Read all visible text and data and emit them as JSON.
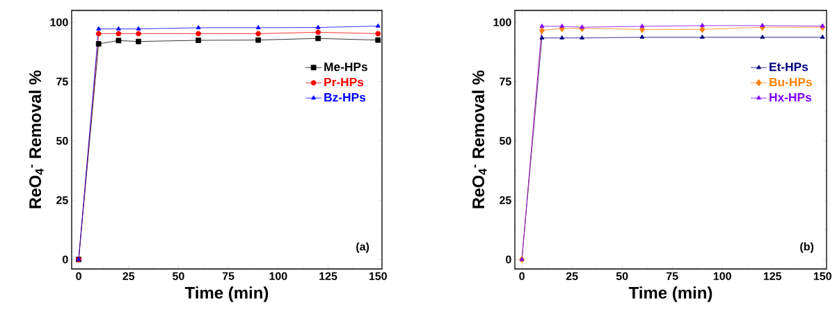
{
  "chart_data": [
    {
      "type": "line",
      "xlabel": "Time (min)",
      "ylabel": "ReO$_{4}$$^{-}$ Removal %",
      "x": [
        0,
        10,
        20,
        30,
        60,
        90,
        120,
        150
      ],
      "xlim": [
        -3.5,
        152
      ],
      "ylim": [
        -4,
        105
      ],
      "xticks": [
        0,
        25,
        50,
        75,
        100,
        125,
        150
      ],
      "yticks": [
        0,
        25,
        50,
        75,
        100
      ],
      "legend": "right",
      "annotations": [
        "(a)"
      ],
      "series": [
        {
          "name": "Me-HPs",
          "color": "#000000",
          "marker": "square",
          "values": [
            0,
            90.9,
            92.3,
            91.9,
            92.4,
            92.5,
            93.2,
            92.5
          ]
        },
        {
          "name": "Pr-HPs",
          "color": "#ff0000",
          "marker": "circle",
          "values": [
            0,
            95.2,
            95.2,
            95.2,
            95.2,
            95.2,
            95.8,
            95.2
          ]
        },
        {
          "name": "Bz-HPs",
          "color": "#0000ff",
          "marker": "triangle",
          "values": [
            0,
            97.2,
            97.2,
            97.2,
            97.7,
            97.7,
            97.8,
            98.4
          ]
        }
      ]
    },
    {
      "type": "line",
      "xlabel": "Time (min)",
      "ylabel": "ReO$_{4}$$^{-}$ Removal %",
      "x": [
        0,
        10,
        20,
        30,
        60,
        90,
        120,
        150
      ],
      "xlim": [
        -3.5,
        152
      ],
      "ylim": [
        -4,
        105
      ],
      "xticks": [
        0,
        25,
        50,
        75,
        100,
        125,
        150
      ],
      "yticks": [
        0,
        25,
        50,
        75,
        100
      ],
      "legend": "right",
      "annotations": [
        "(b)"
      ],
      "series": [
        {
          "name": "Et-HPs",
          "color": "#000080",
          "marker": "triangle",
          "values": [
            0,
            93.4,
            93.4,
            93.4,
            93.7,
            93.7,
            93.7,
            93.7
          ]
        },
        {
          "name": "Bu-HPs",
          "color": "#ff8000",
          "marker": "diamond",
          "values": [
            0,
            96.6,
            97.4,
            97.4,
            97.0,
            97.0,
            97.9,
            97.9
          ]
        },
        {
          "name": "Hx-HPs",
          "color": "#8000ff",
          "marker": "triangle",
          "values": [
            0,
            98.3,
            98.3,
            97.9,
            98.3,
            98.6,
            98.6,
            98.4
          ]
        }
      ]
    }
  ]
}
